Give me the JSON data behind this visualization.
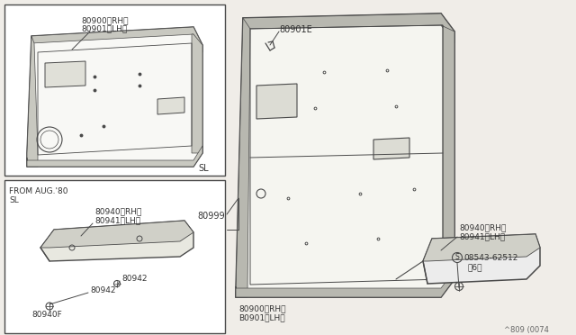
{
  "bg_color": "#f0ede8",
  "line_color": "#4a4a4a",
  "text_color": "#333333",
  "diagram_ref": "^809 (0074",
  "labels": {
    "top_box_label1": "80900〈RH〉",
    "top_box_label2": "80901〈LH〉",
    "top_box_corner": "SL",
    "from_aug": "FROM AUG.'80",
    "sl2": "SL",
    "bottom_box_label1": "80940〈RH〉",
    "bottom_box_label2": "80941〈LH〉",
    "bottom_80942a": "80942",
    "bottom_80942b": "80942",
    "bottom_80940f": "80940F",
    "label_80901e": "80901E",
    "label_80999": "80999",
    "label_main_rh": "80900〈RH〉",
    "label_main_lh": "B0901〈LH〉",
    "label_right_rh": "80940〈RH〉",
    "label_right_lh": "80941〈LH〉",
    "label_screw_s": "S",
    "label_screw_num": "08543-62512",
    "label_screw2": "〈6〉"
  }
}
